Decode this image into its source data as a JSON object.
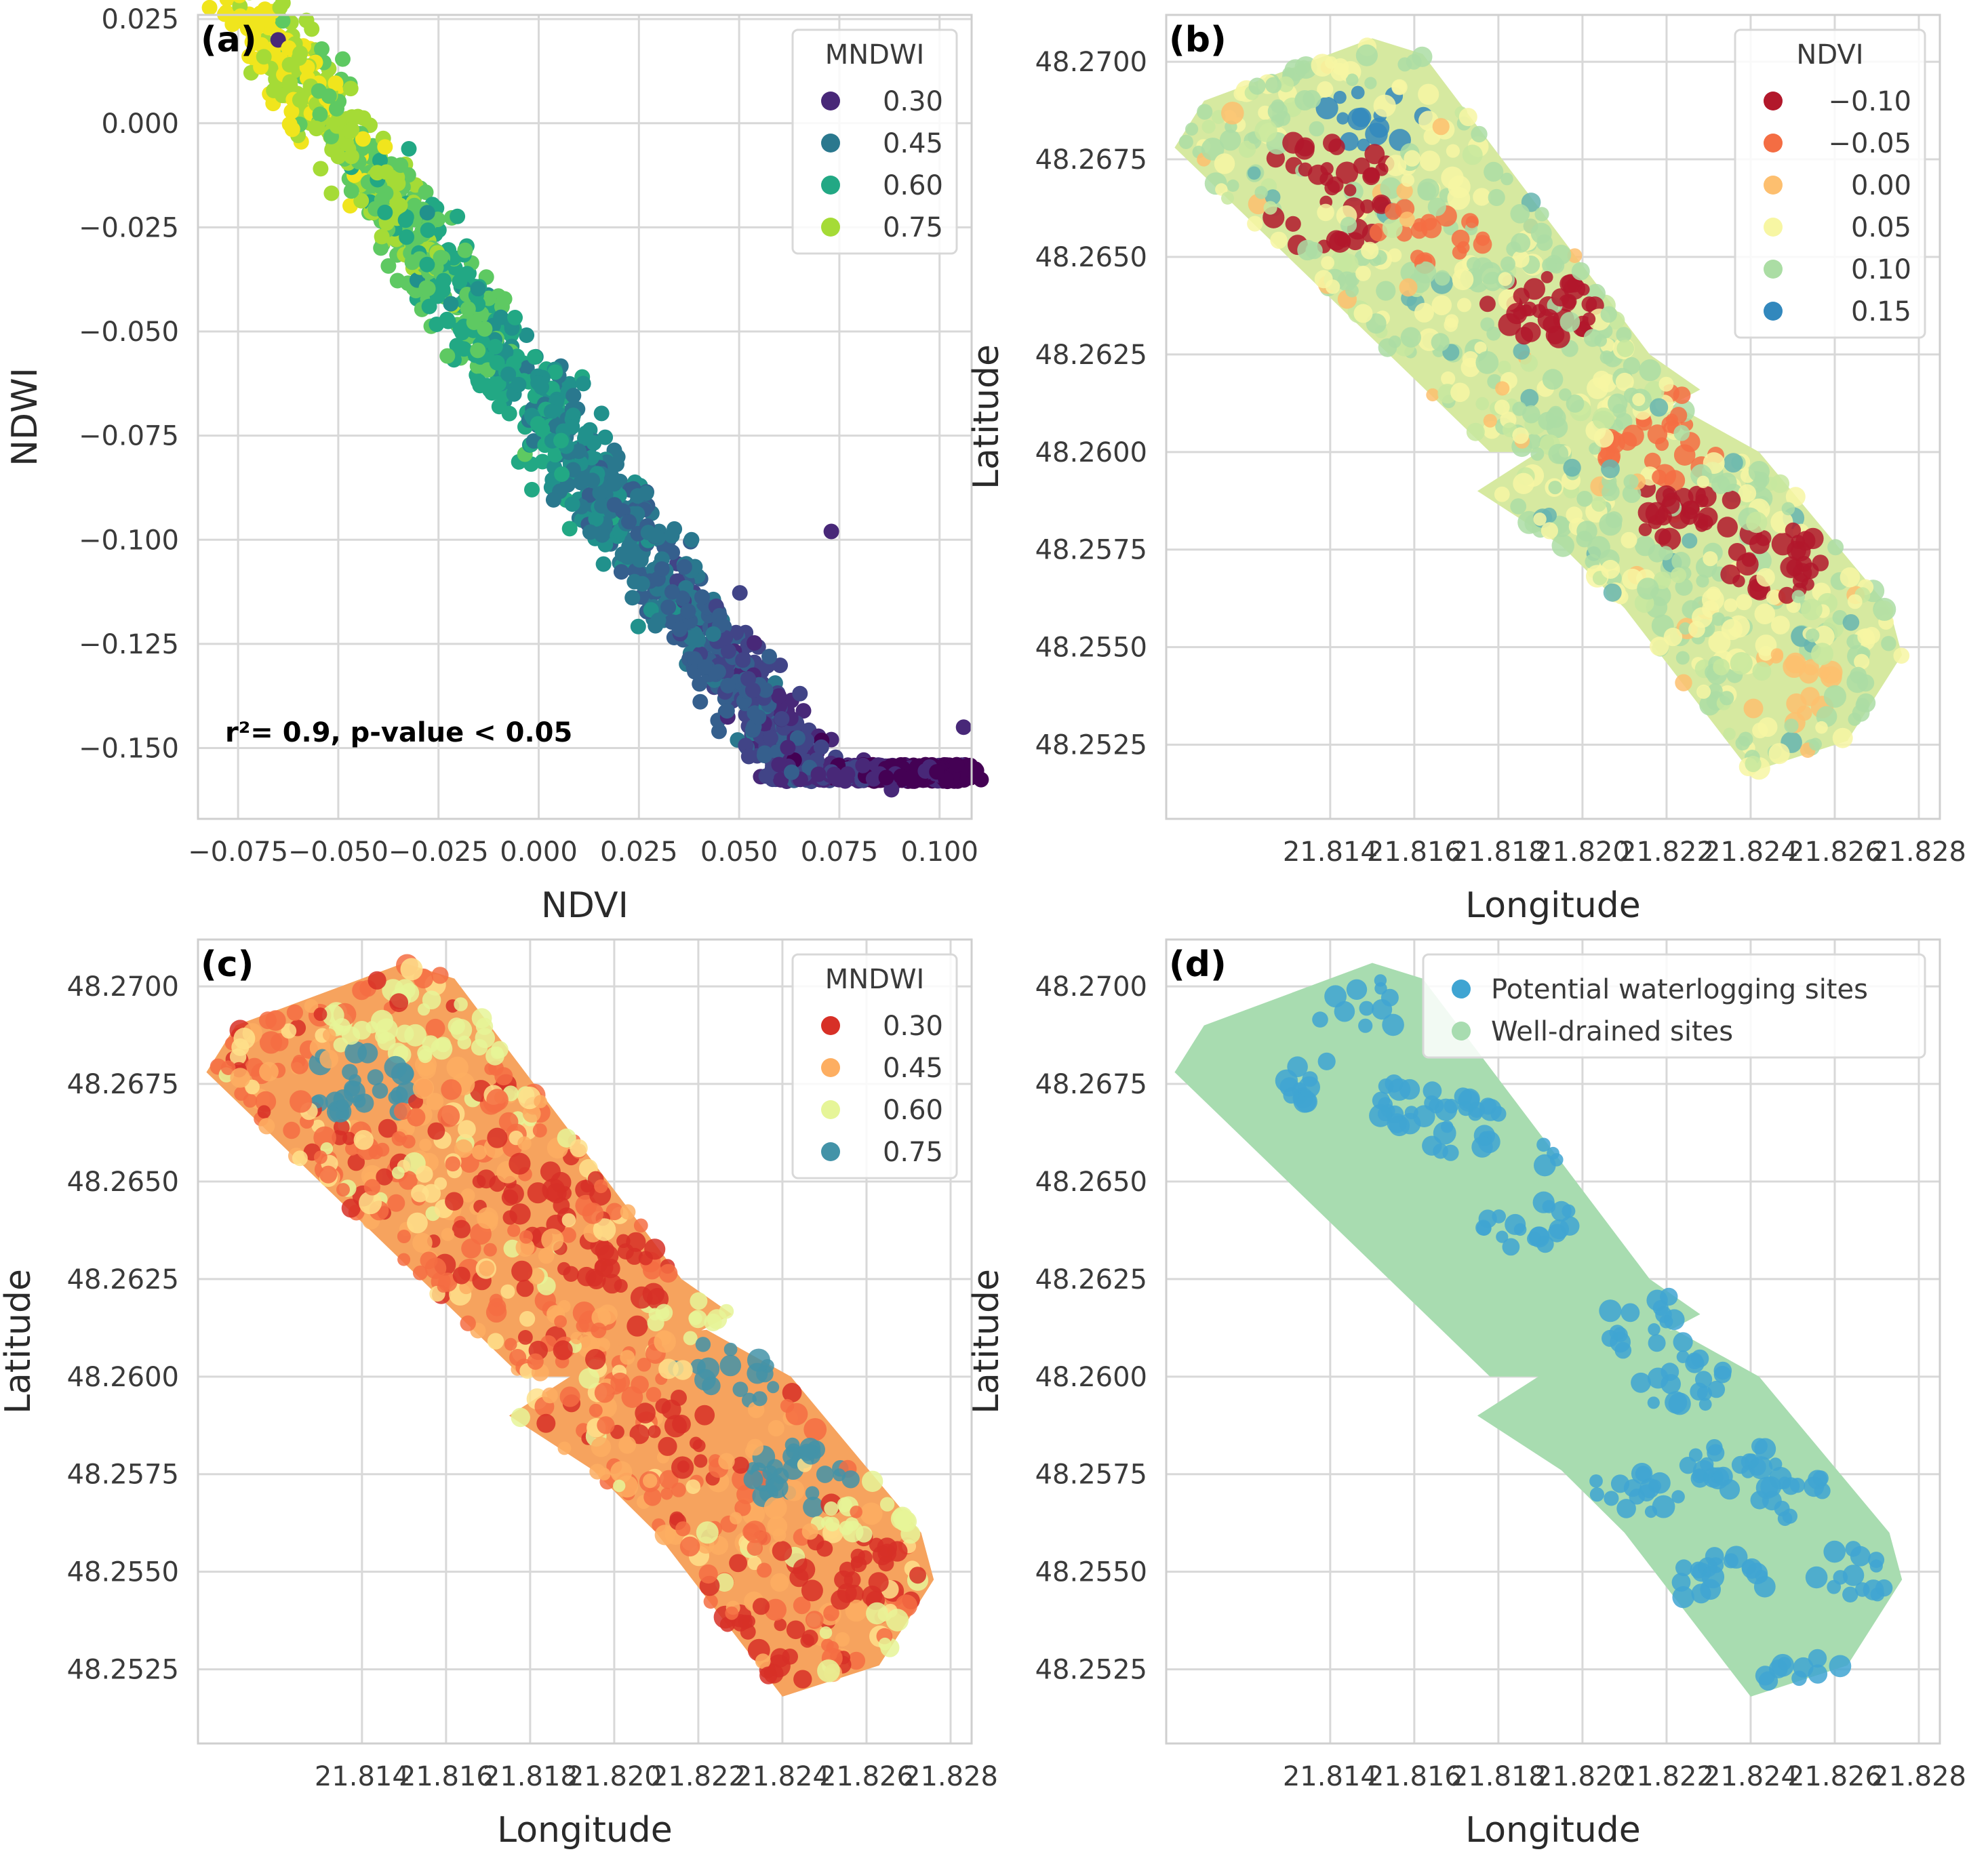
{
  "chart_data": [
    {
      "panel": "(a)",
      "type": "scatter",
      "xlabel": "NDVI",
      "ylabel": "NDWI",
      "xlim": [
        -0.085,
        0.108
      ],
      "ylim": [
        -0.167,
        0.026
      ],
      "xticks": [
        -0.075,
        -0.05,
        -0.025,
        0.0,
        0.025,
        0.05,
        0.075,
        0.1
      ],
      "xtick_labels": [
        "−0.075",
        "−0.050",
        "−0.025",
        "0.000",
        "0.025",
        "0.050",
        "0.075",
        "0.100"
      ],
      "yticks": [
        0.025,
        0.0,
        -0.025,
        -0.05,
        -0.075,
        -0.1,
        -0.125,
        -0.15
      ],
      "ytick_labels": [
        "0.025",
        "0.000",
        "−0.025",
        "−0.050",
        "−0.075",
        "−0.100",
        "−0.125",
        "−0.150"
      ],
      "color_variable": "MNDWI",
      "legend": {
        "title": "MNDWI",
        "position": "top-right",
        "entries": [
          {
            "label": "0.30",
            "color": "#482878"
          },
          {
            "label": "0.45",
            "color": "#2a788e"
          },
          {
            "label": "0.60",
            "color": "#22a884"
          },
          {
            "label": "0.75",
            "color": "#a5db36"
          }
        ]
      },
      "annotation": "r²= 0.9, p-value < 0.05",
      "trend": {
        "slope": -1.33,
        "intercept": -0.068
      },
      "ndvi_range": [
        -0.078,
        0.105
      ],
      "notable_points": [
        {
          "x": -0.065,
          "y": 0.02
        },
        {
          "x": 0.073,
          "y": -0.098
        },
        {
          "x": 0.106,
          "y": -0.145
        },
        {
          "x": 0.088,
          "y": -0.16
        }
      ]
    },
    {
      "panel": "(b)",
      "type": "scatter",
      "xlabel": "Longitude",
      "ylabel": "Latitude",
      "xlim": [
        21.8101,
        21.8285
      ],
      "ylim": [
        48.2506,
        48.2712
      ],
      "xtick_labels": [
        "21.814",
        "21.816",
        "21.818",
        "21.820",
        "21.822",
        "21.824",
        "21.826",
        "21.828"
      ],
      "ytick_labels": [
        "48.2700",
        "48.2675",
        "48.2650",
        "48.2625",
        "48.2600",
        "48.2575",
        "48.2550",
        "48.2525"
      ],
      "color_variable": "NDVI",
      "legend": {
        "title": "NDVI",
        "position": "top-right",
        "entries": [
          {
            "label": "−0.10",
            "color": "#b2182b"
          },
          {
            "label": "−0.05",
            "color": "#f46d43"
          },
          {
            "label": "0.00",
            "color": "#fdbf6f"
          },
          {
            "label": "0.05",
            "color": "#f7f6a3"
          },
          {
            "label": "0.10",
            "color": "#abdda4"
          },
          {
            "label": "0.15",
            "color": "#3288bd"
          }
        ]
      },
      "base_color": "#d6e9a0",
      "patches": [
        {
          "lon": 21.814,
          "lat": 48.2673,
          "value": -0.08
        },
        {
          "lon": 21.814,
          "lat": 48.266,
          "value": -0.1
        },
        {
          "lon": 21.8164,
          "lat": 48.2655,
          "value": -0.05
        },
        {
          "lon": 21.819,
          "lat": 48.2637,
          "value": -0.08
        },
        {
          "lon": 21.8231,
          "lat": 48.2619,
          "value": -0.05
        },
        {
          "lon": 21.8219,
          "lat": 48.2601,
          "value": -0.05
        },
        {
          "lon": 21.8224,
          "lat": 48.2584,
          "value": -0.1
        },
        {
          "lon": 21.8247,
          "lat": 48.2572,
          "value": -0.1
        },
        {
          "lon": 21.825,
          "lat": 48.254,
          "value": 0.0
        },
        {
          "lon": 21.815,
          "lat": 48.2685,
          "value": 0.15
        },
        {
          "lon": 21.827,
          "lat": 48.2535,
          "value": 0.12
        }
      ]
    },
    {
      "panel": "(c)",
      "type": "scatter",
      "xlabel": "Longitude",
      "ylabel": "Latitude",
      "xlim": [
        21.8101,
        21.8285
      ],
      "ylim": [
        48.2506,
        48.2712
      ],
      "xtick_labels": [
        "21.814",
        "21.816",
        "21.818",
        "21.820",
        "21.822",
        "21.824",
        "21.826",
        "21.828"
      ],
      "ytick_labels": [
        "48.2700",
        "48.2675",
        "48.2650",
        "48.2625",
        "48.2600",
        "48.2575",
        "48.2550",
        "48.2525"
      ],
      "color_variable": "MNDWI",
      "legend": {
        "title": "MNDWI",
        "position": "top-right",
        "entries": [
          {
            "label": "0.30",
            "color": "#d73027"
          },
          {
            "label": "0.45",
            "color": "#fdae61"
          },
          {
            "label": "0.60",
            "color": "#e6f598"
          },
          {
            "label": "0.75",
            "color": "#4393a8"
          }
        ]
      },
      "base_color": "#f6a35e",
      "patches": [
        {
          "lon": 21.814,
          "lat": 48.2675,
          "value": 0.75
        },
        {
          "lon": 21.8147,
          "lat": 48.269,
          "value": 0.6
        },
        {
          "lon": 21.817,
          "lat": 48.269,
          "value": 0.6
        },
        {
          "lon": 21.818,
          "lat": 48.2648,
          "value": 0.3
        },
        {
          "lon": 21.82,
          "lat": 48.2627,
          "value": 0.3
        },
        {
          "lon": 21.8222,
          "lat": 48.2617,
          "value": 0.6
        },
        {
          "lon": 21.8228,
          "lat": 48.2601,
          "value": 0.75
        },
        {
          "lon": 21.8245,
          "lat": 48.2575,
          "value": 0.75
        },
        {
          "lon": 21.8215,
          "lat": 48.2586,
          "value": 0.3
        },
        {
          "lon": 21.8255,
          "lat": 48.255,
          "value": 0.3
        },
        {
          "lon": 21.8263,
          "lat": 48.2567,
          "value": 0.6
        },
        {
          "lon": 21.8236,
          "lat": 48.253,
          "value": 0.3
        }
      ]
    },
    {
      "panel": "(d)",
      "type": "scatter",
      "xlabel": "Longitude",
      "ylabel": "Latitude",
      "xlim": [
        21.8101,
        21.8285
      ],
      "ylim": [
        48.2506,
        48.2712
      ],
      "xtick_labels": [
        "21.814",
        "21.816",
        "21.818",
        "21.820",
        "21.822",
        "21.824",
        "21.826",
        "21.828"
      ],
      "ytick_labels": [
        "48.2700",
        "48.2675",
        "48.2650",
        "48.2625",
        "48.2600",
        "48.2575",
        "48.2550",
        "48.2525"
      ],
      "legend": {
        "position": "top-right",
        "entries": [
          {
            "label": "Potential waterlogging sites",
            "color": "#3fa4d2"
          },
          {
            "label": "Well-drained sites",
            "color": "#a8dcb0"
          }
        ]
      },
      "base_color": "#a8dcb0",
      "patches": [
        {
          "lon": 21.8147,
          "lat": 48.2695,
          "value": "Potential waterlogging sites"
        },
        {
          "lon": 21.814,
          "lat": 48.2675,
          "value": "Potential waterlogging sites"
        },
        {
          "lon": 21.8162,
          "lat": 48.267,
          "value": "Potential waterlogging sites"
        },
        {
          "lon": 21.8172,
          "lat": 48.2664,
          "value": "Potential waterlogging sites"
        },
        {
          "lon": 21.82,
          "lat": 48.2656,
          "value": "Potential waterlogging sites"
        },
        {
          "lon": 21.8187,
          "lat": 48.264,
          "value": "Potential waterlogging sites"
        },
        {
          "lon": 21.8228,
          "lat": 48.2622,
          "value": "Potential waterlogging sites"
        },
        {
          "lon": 21.8215,
          "lat": 48.2613,
          "value": "Potential waterlogging sites"
        },
        {
          "lon": 21.8225,
          "lat": 48.2598,
          "value": "Potential waterlogging sites"
        },
        {
          "lon": 21.8235,
          "lat": 48.2577,
          "value": "Potential waterlogging sites"
        },
        {
          "lon": 21.8247,
          "lat": 48.2571,
          "value": "Potential waterlogging sites"
        },
        {
          "lon": 21.8213,
          "lat": 48.257,
          "value": "Potential waterlogging sites"
        },
        {
          "lon": 21.8233,
          "lat": 48.2547,
          "value": "Potential waterlogging sites"
        },
        {
          "lon": 21.8264,
          "lat": 48.255,
          "value": "Potential waterlogging sites"
        },
        {
          "lon": 21.8254,
          "lat": 48.2522,
          "value": "Potential waterlogging sites"
        }
      ]
    }
  ]
}
